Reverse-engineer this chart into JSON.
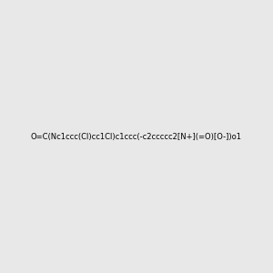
{
  "smiles": "O=C(Nc1ccc(Cl)cc1Cl)c1ccc(-c2ccccc2[N+](=O)[O-])o1",
  "img_size": [
    300,
    300
  ],
  "background_color": "#e8e8e8",
  "figure_size": [
    3.0,
    3.0
  ],
  "dpi": 100
}
